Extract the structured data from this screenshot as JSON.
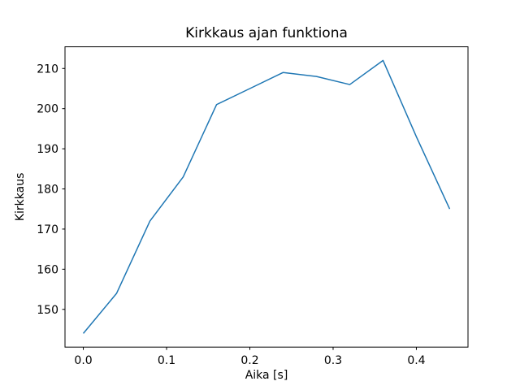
{
  "chart_data": {
    "type": "line",
    "title": "Kirkkaus ajan funktiona",
    "xlabel": "Aika [s]",
    "ylabel": "Kirkkaus",
    "x": [
      0.0,
      0.04,
      0.08,
      0.12,
      0.16,
      0.2,
      0.24,
      0.28,
      0.32,
      0.36,
      0.4,
      0.44
    ],
    "values": [
      144,
      154,
      172,
      183,
      201,
      205,
      209,
      208,
      206,
      212,
      193,
      175
    ],
    "series_name": "Kirkkaus",
    "xlim": [
      -0.022,
      0.462
    ],
    "ylim": [
      140.6,
      215.4
    ],
    "xticks": [
      0.0,
      0.1,
      0.2,
      0.3,
      0.4
    ],
    "xtick_labels": [
      "0.0",
      "0.1",
      "0.2",
      "0.3",
      "0.4"
    ],
    "yticks": [
      150,
      160,
      170,
      180,
      190,
      200,
      210
    ],
    "ytick_labels": [
      "150",
      "160",
      "170",
      "180",
      "190",
      "200",
      "210"
    ],
    "line_color": "#1f77b4",
    "line_width": 1.5,
    "axis_color": "#000000",
    "background_color": "#ffffff",
    "grid": false,
    "legend_position": "none"
  }
}
